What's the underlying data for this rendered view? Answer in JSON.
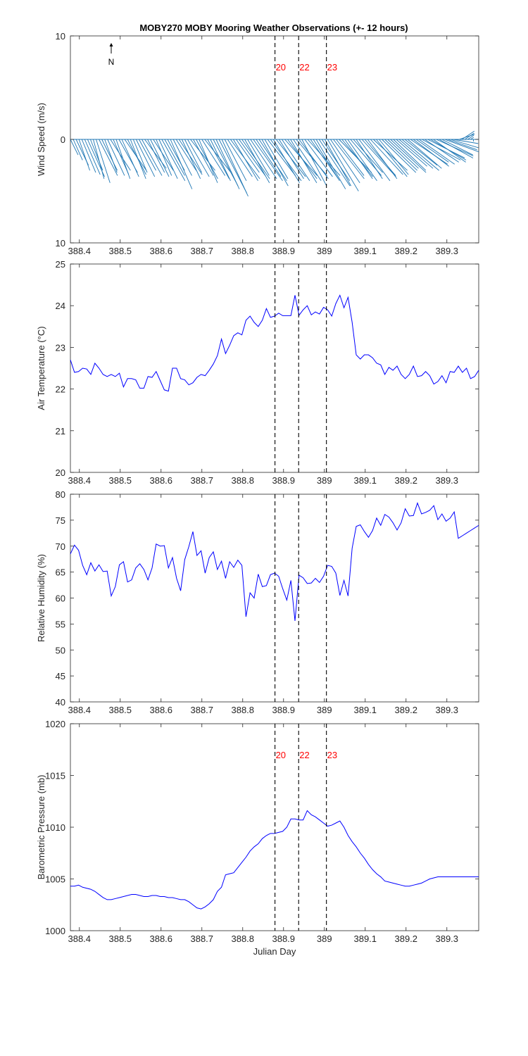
{
  "figure": {
    "title": "MOBY270 MOBY Mooring Weather Observations (+- 12 hours)",
    "north_label": "N"
  },
  "markers": [
    {
      "label": "20",
      "x": 388.879
    },
    {
      "label": "22",
      "x": 388.937
    },
    {
      "label": "23",
      "x": 389.005
    }
  ],
  "colors": {
    "wind": "#1f77b4",
    "line": "#0000ff",
    "marker_text": "#ff0000",
    "marker_line": "#000000"
  },
  "chart_data": [
    {
      "type": "quiver",
      "ylabel": "Wind Speed (m/s)",
      "xlim": [
        388.378,
        389.378
      ],
      "ylim": [
        -10,
        10
      ],
      "xticks": [
        388.4,
        388.5,
        388.6,
        388.7,
        388.8,
        388.9,
        389.0,
        389.1,
        389.2,
        389.3
      ],
      "xtick_labels": [
        "388.4",
        "388.5",
        "388.6",
        "388.7",
        "388.8",
        "388.9",
        "389",
        "389.1",
        "389.2",
        "389.3"
      ],
      "yticks": [
        -10,
        0,
        10
      ],
      "ytick_labels": [
        "10",
        "0",
        "10"
      ],
      "show_markers": true,
      "x": [
        388.378,
        388.385,
        388.392,
        388.399,
        388.406,
        388.413,
        388.42,
        388.427,
        388.434,
        388.441,
        388.448,
        388.455,
        388.462,
        388.469,
        388.476,
        388.483,
        388.49,
        388.497,
        388.504,
        388.511,
        388.518,
        388.525,
        388.532,
        388.539,
        388.546,
        388.553,
        388.56,
        388.567,
        388.574,
        388.581,
        388.588,
        388.595,
        388.602,
        388.609,
        388.616,
        388.623,
        388.63,
        388.637,
        388.644,
        388.651,
        388.658,
        388.665,
        388.672,
        388.679,
        388.686,
        388.693,
        388.7,
        388.707,
        388.714,
        388.721,
        388.728,
        388.735,
        388.742,
        388.749,
        388.756,
        388.763,
        388.77,
        388.777,
        388.784,
        388.791,
        388.798,
        388.805,
        388.812,
        388.819,
        388.826,
        388.833,
        388.84,
        388.847,
        388.854,
        388.861,
        388.868,
        388.875,
        388.882,
        388.889,
        388.896,
        388.903,
        388.91,
        388.917,
        388.924,
        388.931,
        388.938,
        388.945,
        388.952,
        388.959,
        388.966,
        388.973,
        388.98,
        388.987,
        388.994,
        389.001,
        389.008,
        389.015,
        389.022,
        389.029,
        389.036,
        389.043,
        389.05,
        389.057,
        389.064,
        389.071,
        389.078,
        389.085,
        389.092,
        389.099,
        389.106,
        389.113,
        389.12,
        389.127,
        389.134,
        389.141,
        389.148,
        389.155,
        389.162,
        389.169,
        389.176,
        389.183,
        389.19,
        389.197,
        389.204,
        389.211,
        389.218,
        389.225,
        389.232,
        389.239,
        389.246,
        389.253,
        389.26,
        389.267,
        389.274,
        389.281,
        389.288,
        389.295,
        389.302,
        389.309,
        389.316,
        389.323,
        389.33,
        389.337,
        389.344,
        389.351,
        389.358,
        389.365,
        389.372
      ],
      "u": [
        2.5,
        3.0,
        4.0,
        3.5,
        4.5,
        5.0,
        5.5,
        4.0,
        3.5,
        4.5,
        6.0,
        5.0,
        4.0,
        5.5,
        6.5,
        5.0,
        4.5,
        6.0,
        5.5,
        7.0,
        6.0,
        5.0,
        4.5,
        6.0,
        5.5,
        6.5,
        7.0,
        5.5,
        6.0,
        6.5,
        5.0,
        6.0,
        7.5,
        6.5,
        5.5,
        7.0,
        6.0,
        6.5,
        7.5,
        6.0,
        5.5,
        7.0,
        8.0,
        6.5,
        7.0,
        6.0,
        7.5,
        8.5,
        7.0,
        6.5,
        8.0,
        7.5,
        9.0,
        8.5,
        7.0,
        8.0,
        9.5,
        8.0,
        7.5,
        8.5,
        9.0,
        8.0,
        7.0,
        8.5,
        9.5,
        8.0,
        9.0,
        8.5,
        7.5,
        9.0,
        10.0,
        8.5,
        9.5,
        8.0,
        9.0,
        10.5,
        9.5,
        8.5,
        9.0,
        10.0,
        9.5,
        8.0,
        9.0,
        10.5,
        9.0,
        8.5,
        9.5,
        10.0,
        9.0,
        8.5,
        10.0,
        9.5,
        10.0,
        9.0,
        10.5,
        10.0,
        9.0,
        9.5,
        10.0,
        9.5,
        8.5,
        10.0,
        11.0,
        10.0,
        9.5,
        10.5,
        11.0,
        10.0,
        9.5,
        11.0,
        10.5,
        10.0,
        11.5,
        10.5,
        10.0,
        11.0,
        12.0,
        10.5,
        11.0,
        12.0,
        11.5,
        10.5,
        11.5,
        12.5,
        11.0,
        12.0,
        11.5,
        10.5,
        12.0,
        11.0,
        10.0,
        11.0,
        9.5,
        9.0,
        8.0,
        6.0,
        5.0,
        4.0,
        3.0,
        2.0,
        1.0
      ],
      "v": [
        -1.5,
        -2.0,
        -2.5,
        -3.0,
        -3.2,
        -3.4,
        -3.6,
        -3.0,
        -3.8,
        -4.2,
        -3.5,
        -3.0,
        -3.2,
        -3.5,
        -3.0,
        -3.4,
        -3.8,
        -3.2,
        -3.6,
        -3.0,
        -3.4,
        -3.8,
        -3.2,
        -3.6,
        -3.0,
        -3.5,
        -2.8,
        -3.2,
        -3.6,
        -3.0,
        -3.5,
        -3.8,
        -4.0,
        -3.5,
        -3.0,
        -4.8,
        -3.5,
        -3.0,
        -3.4,
        -3.8,
        -3.2,
        -3.6,
        -3.0,
        -3.5,
        -3.8,
        -4.2,
        -3.5,
        -3.2,
        -3.8,
        -4.0,
        -4.5,
        -4.8,
        -5.2,
        -5.5,
        -4.0,
        -3.6,
        -3.8,
        -4.0,
        -3.2,
        -3.5,
        -3.8,
        -4.2,
        -3.5,
        -3.8,
        -4.0,
        -3.6,
        -4.0,
        -4.5,
        -3.8,
        -3.5,
        -4.0,
        -4.2,
        -3.6,
        -3.8,
        -4.0,
        -3.5,
        -3.8,
        -4.2,
        -4.0,
        -3.5,
        -3.8,
        -4.5,
        -3.6,
        -3.5,
        -3.8,
        -4.0,
        -4.8,
        -4.5,
        -4.0,
        -4.5,
        -5.0,
        -4.2,
        -3.8,
        -3.5,
        -3.2,
        -3.6,
        -3.8,
        -4.0,
        -3.5,
        -3.2,
        -3.8,
        -4.0,
        -3.6,
        -3.5,
        -3.8,
        -3.4,
        -3.0,
        -3.6,
        -3.4,
        -3.2,
        -3.0,
        -2.8,
        -3.2,
        -3.0,
        -2.6,
        -2.8,
        -3.0,
        -2.5,
        -2.8,
        -2.4,
        -2.6,
        -2.2,
        -2.4,
        -2.0,
        -2.2,
        -1.8,
        -2.0,
        -2.2,
        -1.6,
        -1.8,
        -1.5,
        -1.2,
        -1.0,
        -0.8,
        -0.4,
        0.0,
        0.5,
        0.8,
        0.6,
        0.4,
        0.2,
        -0.2,
        0.0
      ]
    },
    {
      "type": "line",
      "ylabel": "Air Temperature (°C)",
      "xlim": [
        388.378,
        389.378
      ],
      "ylim": [
        20,
        25
      ],
      "xticks": [
        388.4,
        388.5,
        388.6,
        388.7,
        388.8,
        388.9,
        389.0,
        389.1,
        389.2,
        389.3
      ],
      "xtick_labels": [
        "388.4",
        "388.5",
        "388.6",
        "388.7",
        "388.8",
        "388.9",
        "389",
        "389.1",
        "389.2",
        "389.3"
      ],
      "yticks": [
        20,
        21,
        22,
        23,
        24,
        25
      ],
      "ytick_labels": [
        "20",
        "21",
        "22",
        "23",
        "24",
        "25"
      ],
      "show_markers": false,
      "x": [
        388.378,
        388.388,
        388.398,
        388.408,
        388.418,
        388.428,
        388.438,
        388.448,
        388.458,
        388.468,
        388.478,
        388.488,
        388.498,
        388.508,
        388.518,
        388.528,
        388.538,
        388.548,
        388.558,
        388.568,
        388.578,
        388.588,
        388.598,
        388.608,
        388.618,
        388.628,
        388.638,
        388.648,
        388.658,
        388.668,
        388.678,
        388.688,
        388.698,
        388.708,
        388.718,
        388.728,
        388.738,
        388.748,
        388.758,
        388.768,
        388.778,
        388.788,
        388.798,
        388.808,
        388.818,
        388.828,
        388.838,
        388.848,
        388.858,
        388.868,
        388.878,
        388.888,
        388.898,
        388.908,
        388.918,
        388.928,
        388.938,
        388.948,
        388.958,
        388.968,
        388.978,
        388.988,
        388.998,
        389.008,
        389.018,
        389.028,
        389.038,
        389.048,
        389.058,
        389.068,
        389.078,
        389.088,
        389.098,
        389.108,
        389.118,
        389.128,
        389.138,
        389.148,
        389.158,
        389.168,
        389.178,
        389.188,
        389.198,
        389.208,
        389.218,
        389.228,
        389.238,
        389.248,
        389.258,
        389.268,
        389.278,
        389.288,
        389.298,
        389.308,
        389.318,
        389.328,
        389.338,
        389.348,
        389.358,
        389.368,
        389.378
      ],
      "y": [
        22.7,
        22.4,
        22.42,
        22.5,
        22.48,
        22.35,
        22.62,
        22.5,
        22.35,
        22.3,
        22.35,
        22.3,
        22.38,
        22.05,
        22.25,
        22.25,
        22.22,
        22.02,
        22.02,
        22.3,
        22.28,
        22.42,
        22.2,
        21.98,
        21.95,
        22.5,
        22.5,
        22.25,
        22.22,
        22.1,
        22.15,
        22.28,
        22.35,
        22.32,
        22.45,
        22.6,
        22.8,
        23.2,
        22.85,
        23.05,
        23.28,
        23.35,
        23.3,
        23.65,
        23.75,
        23.6,
        23.5,
        23.65,
        23.93,
        23.72,
        23.75,
        23.82,
        23.76,
        23.76,
        23.76,
        24.25,
        23.77,
        23.9,
        24.0,
        23.78,
        23.85,
        23.8,
        23.96,
        23.9,
        23.75,
        24.05,
        24.25,
        23.95,
        24.2,
        23.6,
        22.82,
        22.72,
        22.82,
        22.82,
        22.75,
        22.62,
        22.58,
        22.35,
        22.52,
        22.45,
        22.55,
        22.35,
        22.25,
        22.35,
        22.55,
        22.3,
        22.32,
        22.42,
        22.32,
        22.12,
        22.18,
        22.32,
        22.15,
        22.42,
        22.4,
        22.55,
        22.4,
        22.5,
        22.25,
        22.3,
        22.45
      ]
    },
    {
      "type": "line",
      "ylabel": "Relative Humidity (%)",
      "xlim": [
        388.378,
        389.378
      ],
      "ylim": [
        40,
        80
      ],
      "xticks": [
        388.4,
        388.5,
        388.6,
        388.7,
        388.8,
        388.9,
        389.0,
        389.1,
        389.2,
        389.3
      ],
      "xtick_labels": [
        "388.4",
        "388.5",
        "388.6",
        "388.7",
        "388.8",
        "388.9",
        "389",
        "389.1",
        "389.2",
        "389.3"
      ],
      "yticks": [
        40,
        45,
        50,
        55,
        60,
        65,
        70,
        75,
        80
      ],
      "ytick_labels": [
        "40",
        "45",
        "50",
        "55",
        "60",
        "65",
        "70",
        "75",
        "80"
      ],
      "show_markers": false,
      "x": [
        388.378,
        388.388,
        388.398,
        388.408,
        388.418,
        388.428,
        388.438,
        388.448,
        388.458,
        388.468,
        388.478,
        388.488,
        388.498,
        388.508,
        388.518,
        388.528,
        388.538,
        388.548,
        388.558,
        388.568,
        388.578,
        388.588,
        388.598,
        388.608,
        388.618,
        388.628,
        388.638,
        388.648,
        388.658,
        388.668,
        388.678,
        388.688,
        388.698,
        388.708,
        388.718,
        388.728,
        388.738,
        388.748,
        388.758,
        388.768,
        388.778,
        388.788,
        388.798,
        388.808,
        388.818,
        388.828,
        388.838,
        388.848,
        388.858,
        388.868,
        388.878,
        388.888,
        388.898,
        388.908,
        388.918,
        388.928,
        388.938,
        388.948,
        388.958,
        388.968,
        388.978,
        388.988,
        388.998,
        389.008,
        389.018,
        389.028,
        389.038,
        389.048,
        389.058,
        389.068,
        389.078,
        389.088,
        389.098,
        389.108,
        389.118,
        389.128,
        389.138,
        389.148,
        389.158,
        389.168,
        389.178,
        389.188,
        389.198,
        389.208,
        389.218,
        389.228,
        389.238,
        389.248,
        389.258,
        389.268,
        389.278,
        389.288,
        389.298,
        389.308,
        389.318,
        389.328,
        389.338,
        389.348,
        389.358,
        389.368,
        389.378
      ],
      "y": [
        68.5,
        70.2,
        69.2,
        66.3,
        64.5,
        66.8,
        65.2,
        66.4,
        65.1,
        65.2,
        60.4,
        62.2,
        66.4,
        67.0,
        63.1,
        63.5,
        65.8,
        66.6,
        65.5,
        63.5,
        65.8,
        70.4,
        70.0,
        70.1,
        65.8,
        67.8,
        63.8,
        61.4,
        67.4,
        69.9,
        72.8,
        68.2,
        69.1,
        64.8,
        67.8,
        68.9,
        65.5,
        67.1,
        63.8,
        67.0,
        65.9,
        67.3,
        66.3,
        56.4,
        61.0,
        60.0,
        64.6,
        62.2,
        62.4,
        64.5,
        64.8,
        64.2,
        61.8,
        59.6,
        63.4,
        55.6,
        64.4,
        63.9,
        62.8,
        62.9,
        63.8,
        63.0,
        64.2,
        66.3,
        66.1,
        64.8,
        60.5,
        63.4,
        60.4,
        69.6,
        73.8,
        74.1,
        72.8,
        71.7,
        73.0,
        75.4,
        74.0,
        76.1,
        75.6,
        74.5,
        73.1,
        74.5,
        77.2,
        75.8,
        75.9,
        78.3,
        76.2,
        76.5,
        76.9,
        77.8,
        75.1,
        76.2,
        74.8,
        75.4,
        76.6,
        71.5,
        72.0,
        72.5,
        73.0,
        73.5,
        74.0
      ]
    },
    {
      "type": "line",
      "ylabel": "Barometric Pressure (mb)",
      "xlabel": "Julian Day",
      "xlim": [
        388.378,
        389.378
      ],
      "ylim": [
        1000,
        1020
      ],
      "xticks": [
        388.4,
        388.5,
        388.6,
        388.7,
        388.8,
        388.9,
        389.0,
        389.1,
        389.2,
        389.3
      ],
      "xtick_labels": [
        "388.4",
        "388.5",
        "388.6",
        "388.7",
        "388.8",
        "388.9",
        "389",
        "389.1",
        "389.2",
        "389.3"
      ],
      "yticks": [
        1000,
        1005,
        1010,
        1015,
        1020
      ],
      "ytick_labels": [
        "1000",
        "1005",
        "1010",
        "1015",
        "1020"
      ],
      "show_markers": true,
      "x": [
        388.378,
        388.388,
        388.398,
        388.408,
        388.418,
        388.428,
        388.438,
        388.448,
        388.458,
        388.468,
        388.478,
        388.488,
        388.498,
        388.508,
        388.518,
        388.528,
        388.538,
        388.548,
        388.558,
        388.568,
        388.578,
        388.588,
        388.598,
        388.608,
        388.618,
        388.628,
        388.638,
        388.648,
        388.658,
        388.668,
        388.678,
        388.688,
        388.698,
        388.708,
        388.718,
        388.728,
        388.738,
        388.748,
        388.758,
        388.768,
        388.778,
        388.788,
        388.798,
        388.808,
        388.818,
        388.828,
        388.838,
        388.848,
        388.858,
        388.868,
        388.878,
        388.888,
        388.898,
        388.908,
        388.918,
        388.928,
        388.938,
        388.948,
        388.958,
        388.968,
        388.978,
        388.988,
        388.998,
        389.008,
        389.018,
        389.028,
        389.038,
        389.048,
        389.058,
        389.068,
        389.078,
        389.088,
        389.098,
        389.108,
        389.118,
        389.128,
        389.138,
        389.148,
        389.158,
        389.168,
        389.178,
        389.188,
        389.198,
        389.208,
        389.218,
        389.228,
        389.238,
        389.248,
        389.258,
        389.268,
        389.278,
        389.288,
        389.298,
        389.308,
        389.318,
        389.328,
        389.338,
        389.348,
        389.358,
        389.368,
        389.378
      ],
      "y": [
        1004.3,
        1004.3,
        1004.4,
        1004.2,
        1004.1,
        1004.0,
        1003.8,
        1003.5,
        1003.2,
        1003.0,
        1003.0,
        1003.1,
        1003.2,
        1003.3,
        1003.4,
        1003.5,
        1003.5,
        1003.4,
        1003.3,
        1003.3,
        1003.4,
        1003.4,
        1003.3,
        1003.3,
        1003.2,
        1003.2,
        1003.1,
        1003.0,
        1003.0,
        1002.8,
        1002.5,
        1002.2,
        1002.1,
        1002.3,
        1002.6,
        1003.0,
        1003.8,
        1004.2,
        1005.4,
        1005.5,
        1005.6,
        1006.1,
        1006.6,
        1007.1,
        1007.7,
        1008.1,
        1008.4,
        1008.9,
        1009.2,
        1009.4,
        1009.4,
        1009.5,
        1009.6,
        1010.0,
        1010.8,
        1010.8,
        1010.7,
        1010.7,
        1011.6,
        1011.2,
        1011.0,
        1010.7,
        1010.4,
        1010.1,
        1010.2,
        1010.4,
        1010.6,
        1010.0,
        1009.2,
        1008.6,
        1008.1,
        1007.5,
        1007.0,
        1006.4,
        1005.9,
        1005.5,
        1005.2,
        1004.8,
        1004.7,
        1004.6,
        1004.5,
        1004.4,
        1004.3,
        1004.3,
        1004.4,
        1004.5,
        1004.6,
        1004.8,
        1005.0,
        1005.1,
        1005.2,
        1005.2,
        1005.2,
        1005.2,
        1005.2,
        1005.2,
        1005.2,
        1005.2,
        1005.2,
        1005.2,
        1005.2
      ]
    }
  ]
}
